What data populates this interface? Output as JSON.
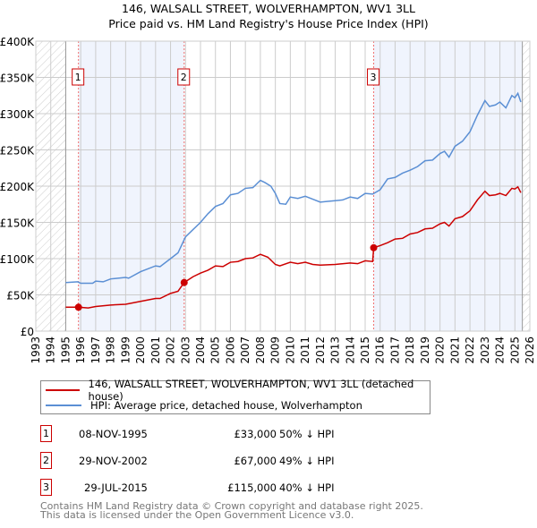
{
  "title": "146, WALSALL STREET, WOLVERHAMPTON, WV1 3LL",
  "subtitle": "Price paid vs. HM Land Registry's House Price Index (HPI)",
  "chart_data": {
    "type": "line",
    "title": "146, WALSALL STREET, WOLVERHAMPTON, WV1 3LL — Price paid vs. HM Land Registry's House Price Index (HPI)",
    "xlim": [
      1993,
      2026
    ],
    "ylim": [
      0,
      400000
    ],
    "y_ticks": [
      {
        "v": 0,
        "label": "£0"
      },
      {
        "v": 50000,
        "label": "£50K"
      },
      {
        "v": 100000,
        "label": "£100K"
      },
      {
        "v": 150000,
        "label": "£150K"
      },
      {
        "v": 200000,
        "label": "£200K"
      },
      {
        "v": 250000,
        "label": "£250K"
      },
      {
        "v": 300000,
        "label": "£300K"
      },
      {
        "v": 350000,
        "label": "£350K"
      },
      {
        "v": 400000,
        "label": "£400K"
      }
    ],
    "x_ticks": [
      "1993",
      "1994",
      "1995",
      "1996",
      "1997",
      "1998",
      "1999",
      "2000",
      "2001",
      "2002",
      "2003",
      "2004",
      "2005",
      "2006",
      "2007",
      "2008",
      "2009",
      "2010",
      "2011",
      "2012",
      "2013",
      "2014",
      "2015",
      "2016",
      "2017",
      "2018",
      "2019",
      "2020",
      "2021",
      "2022",
      "2023",
      "2024",
      "2025",
      "2026"
    ],
    "grid": true,
    "data_start": 1995,
    "data_end": 2025.5,
    "series": [
      {
        "name": "146, WALSALL STREET, WOLVERHAMPTON, WV1 3LL (detached house)",
        "color": "#cc0000",
        "x": [
          1995,
          1995.85,
          1996.5,
          1997,
          1998,
          1999,
          2000,
          2001,
          2001.3,
          2002,
          2002.5,
          2002.91,
          2003.5,
          2004,
          2004.5,
          2005,
          2005.5,
          2006,
          2006.5,
          2007,
          2007.5,
          2008,
          2008.5,
          2009,
          2009.3,
          2010,
          2010.5,
          2011,
          2011.5,
          2012,
          2013,
          2014,
          2014.5,
          2015,
          2015.5,
          2015.57,
          2016,
          2016.5,
          2017,
          2017.5,
          2018,
          2018.5,
          2019,
          2019.5,
          2020,
          2020.3,
          2020.6,
          2021,
          2021.5,
          2022,
          2022.5,
          2023,
          2023.3,
          2023.7,
          2024,
          2024.4,
          2024.8,
          2025,
          2025.2,
          2025.4
        ],
        "y": [
          33000,
          33000,
          32000,
          34000,
          36000,
          37000,
          41000,
          45000,
          45000,
          52000,
          55000,
          67000,
          75000,
          80000,
          84000,
          90000,
          89000,
          95000,
          96000,
          100000,
          101000,
          106000,
          102000,
          92000,
          90000,
          95000,
          93000,
          95000,
          92000,
          91000,
          92000,
          94000,
          93000,
          97000,
          96000,
          115000,
          118000,
          122000,
          127000,
          128000,
          134000,
          136000,
          141000,
          142000,
          148000,
          150000,
          145000,
          155000,
          158000,
          166000,
          181000,
          193000,
          187000,
          188000,
          190000,
          187000,
          197000,
          196000,
          199000,
          191000
        ]
      },
      {
        "name": "HPI: Average price, detached house, Wolverhampton",
        "color": "#5b8fd4",
        "x": [
          1995,
          1995.8,
          1996,
          1996.8,
          1997,
          1997.5,
          1998,
          1999,
          1999.2,
          2000,
          2001,
          2001.3,
          2002,
          2002.5,
          2003,
          2003.5,
          2004,
          2004.5,
          2005,
          2005.5,
          2006,
          2006.5,
          2007,
          2007.5,
          2008,
          2008.3,
          2008.7,
          2009,
          2009.3,
          2009.7,
          2010,
          2010.5,
          2011,
          2011.5,
          2012,
          2012.5,
          2013,
          2013.5,
          2014,
          2014.5,
          2015,
          2015.5,
          2016,
          2016.5,
          2017,
          2017.5,
          2018,
          2018.5,
          2019,
          2019.5,
          2020,
          2020.3,
          2020.6,
          2021,
          2021.5,
          2022,
          2022.5,
          2023,
          2023.3,
          2023.7,
          2024,
          2024.4,
          2024.8,
          2025,
          2025.2,
          2025.4
        ],
        "y": [
          67000,
          68000,
          66000,
          66000,
          69000,
          68000,
          72000,
          74000,
          73000,
          82000,
          90000,
          89000,
          100000,
          108000,
          130000,
          140000,
          150000,
          162000,
          172000,
          176000,
          188000,
          190000,
          197000,
          198000,
          208000,
          205000,
          200000,
          190000,
          176000,
          175000,
          185000,
          183000,
          186000,
          182000,
          178000,
          179000,
          180000,
          181000,
          185000,
          183000,
          190000,
          189000,
          195000,
          210000,
          212000,
          218000,
          222000,
          227000,
          235000,
          236000,
          245000,
          248000,
          240000,
          255000,
          262000,
          275000,
          298000,
          318000,
          310000,
          312000,
          316000,
          308000,
          325000,
          322000,
          328000,
          316000
        ]
      }
    ],
    "sales": [
      {
        "num": "1",
        "x": 1995.85,
        "y": 33000,
        "date": "08-NOV-1995",
        "price": "£33,000",
        "delta": "50% ↓ HPI"
      },
      {
        "num": "2",
        "x": 2002.91,
        "y": 67000,
        "date": "29-NOV-2002",
        "price": "£67,000",
        "delta": "49% ↓ HPI"
      },
      {
        "num": "3",
        "x": 2015.57,
        "y": 115000,
        "date": "29-JUL-2015",
        "price": "£115,000",
        "delta": "40% ↓ HPI"
      }
    ]
  },
  "legend": {
    "items": [
      {
        "label": "146, WALSALL STREET, WOLVERHAMPTON, WV1 3LL (detached house)",
        "color": "#cc0000"
      },
      {
        "label": "HPI: Average price, detached house, Wolverhampton",
        "color": "#5b8fd4"
      }
    ]
  },
  "footer": {
    "line1": "Contains HM Land Registry data © Crown copyright and database right 2025.",
    "line2": "This data is licensed under the Open Government Licence v3.0."
  }
}
